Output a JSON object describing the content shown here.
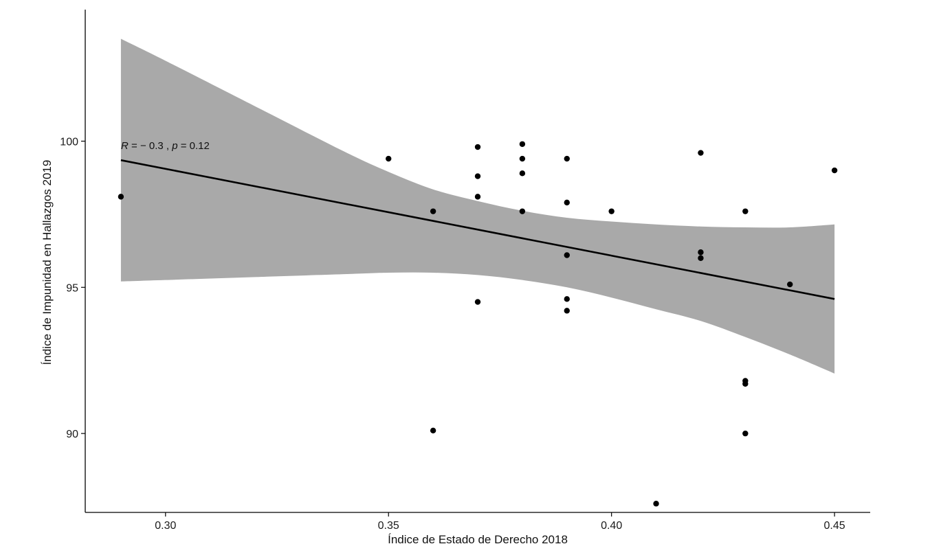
{
  "chart_data": {
    "type": "scatter",
    "xlabel": "Índice de Estado de Derecho 2018",
    "ylabel": "Índice de Impunidad en Hallazgos 2019",
    "xlim": [
      0.282,
      0.458
    ],
    "ylim": [
      87.3,
      104.5
    ],
    "x_ticks": [
      0.3,
      0.35,
      0.4,
      0.45
    ],
    "x_tick_labels": [
      "0.30",
      "0.35",
      "0.40",
      "0.45"
    ],
    "y_ticks": [
      90,
      95,
      100
    ],
    "y_tick_labels": [
      "90",
      "95",
      "100"
    ],
    "grid": false,
    "annotation": {
      "r_label": "R",
      "r_value": " = − 0.3 , ",
      "p_label": "p",
      "p_value": " = 0.12"
    },
    "points": [
      {
        "x": 0.29,
        "y": 98.1
      },
      {
        "x": 0.35,
        "y": 99.4
      },
      {
        "x": 0.36,
        "y": 97.6
      },
      {
        "x": 0.36,
        "y": 90.1
      },
      {
        "x": 0.37,
        "y": 99.8
      },
      {
        "x": 0.37,
        "y": 98.8
      },
      {
        "x": 0.37,
        "y": 98.1
      },
      {
        "x": 0.37,
        "y": 94.5
      },
      {
        "x": 0.38,
        "y": 99.9
      },
      {
        "x": 0.38,
        "y": 99.4
      },
      {
        "x": 0.38,
        "y": 98.9
      },
      {
        "x": 0.38,
        "y": 97.6
      },
      {
        "x": 0.39,
        "y": 99.4
      },
      {
        "x": 0.39,
        "y": 97.9
      },
      {
        "x": 0.39,
        "y": 96.1
      },
      {
        "x": 0.39,
        "y": 94.6
      },
      {
        "x": 0.39,
        "y": 94.2
      },
      {
        "x": 0.4,
        "y": 97.6
      },
      {
        "x": 0.41,
        "y": 87.6
      },
      {
        "x": 0.42,
        "y": 99.6
      },
      {
        "x": 0.42,
        "y": 96.2
      },
      {
        "x": 0.42,
        "y": 96.0
      },
      {
        "x": 0.43,
        "y": 97.6
      },
      {
        "x": 0.43,
        "y": 91.8
      },
      {
        "x": 0.43,
        "y": 91.7
      },
      {
        "x": 0.43,
        "y": 90.0
      },
      {
        "x": 0.44,
        "y": 95.1
      },
      {
        "x": 0.45,
        "y": 99.0
      }
    ],
    "fit_line": {
      "x": [
        0.29,
        0.45
      ],
      "y": [
        99.35,
        94.6
      ]
    },
    "confidence_band": {
      "x": [
        0.29,
        0.3,
        0.32,
        0.34,
        0.35,
        0.36,
        0.37,
        0.38,
        0.39,
        0.4,
        0.41,
        0.42,
        0.43,
        0.44,
        0.45
      ],
      "upper": [
        103.5,
        102.75,
        101.2,
        99.65,
        98.95,
        98.35,
        97.95,
        97.62,
        97.38,
        97.25,
        97.15,
        97.08,
        97.05,
        97.05,
        97.15
      ],
      "lower": [
        95.2,
        95.25,
        95.35,
        95.45,
        95.5,
        95.5,
        95.42,
        95.25,
        95.0,
        94.65,
        94.25,
        93.85,
        93.3,
        92.7,
        92.05
      ]
    },
    "colors": {
      "band": "#a9a9a9",
      "line": "#000000",
      "point": "#000000",
      "axis": "#000000"
    }
  }
}
